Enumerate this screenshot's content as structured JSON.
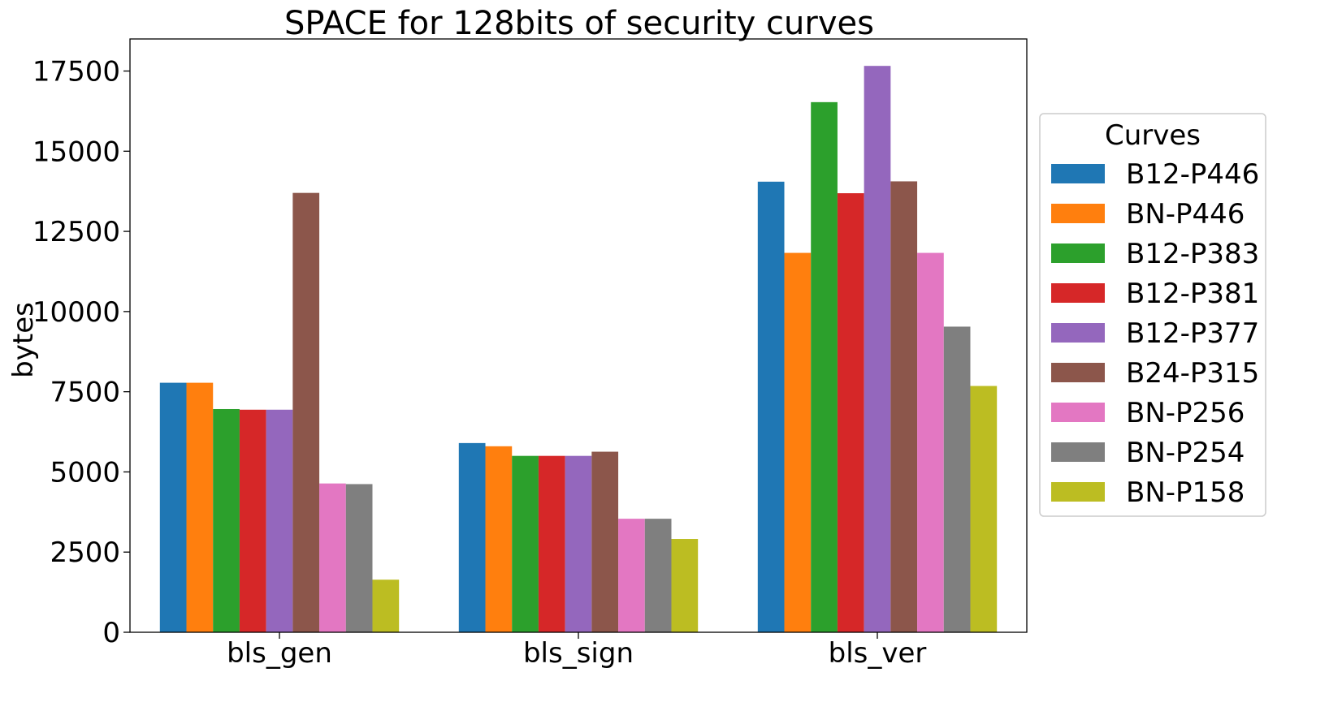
{
  "chart_data": {
    "type": "bar",
    "title": "SPACE for 128bits of security curves",
    "xlabel": "",
    "ylabel": "bytes",
    "ylim": [
      0,
      18500
    ],
    "yticks": [
      0,
      2500,
      5000,
      7500,
      10000,
      12500,
      15000,
      17500
    ],
    "categories": [
      "bls_gen",
      "bls_sign",
      "bls_ver"
    ],
    "legend_title": "Curves",
    "legend_position": "right",
    "grid": false,
    "series": [
      {
        "name": "B12-P446",
        "color": "#1f77b4",
        "values": [
          7780,
          5900,
          14050
        ]
      },
      {
        "name": "BN-P446",
        "color": "#ff7f0e",
        "values": [
          7780,
          5800,
          11830
        ]
      },
      {
        "name": "B12-P383",
        "color": "#2ca02c",
        "values": [
          6960,
          5500,
          16530
        ]
      },
      {
        "name": "B12-P381",
        "color": "#d62728",
        "values": [
          6940,
          5500,
          13690
        ]
      },
      {
        "name": "B12-P377",
        "color": "#9467bd",
        "values": [
          6940,
          5500,
          17660
        ]
      },
      {
        "name": "B24-P315",
        "color": "#8c564b",
        "values": [
          13700,
          5630,
          14060
        ]
      },
      {
        "name": "BN-P256",
        "color": "#e377c2",
        "values": [
          4640,
          3540,
          11830
        ]
      },
      {
        "name": "BN-P254",
        "color": "#7f7f7f",
        "values": [
          4620,
          3540,
          9530
        ]
      },
      {
        "name": "BN-P158",
        "color": "#bcbd22",
        "values": [
          1640,
          2910,
          7680
        ]
      }
    ]
  }
}
